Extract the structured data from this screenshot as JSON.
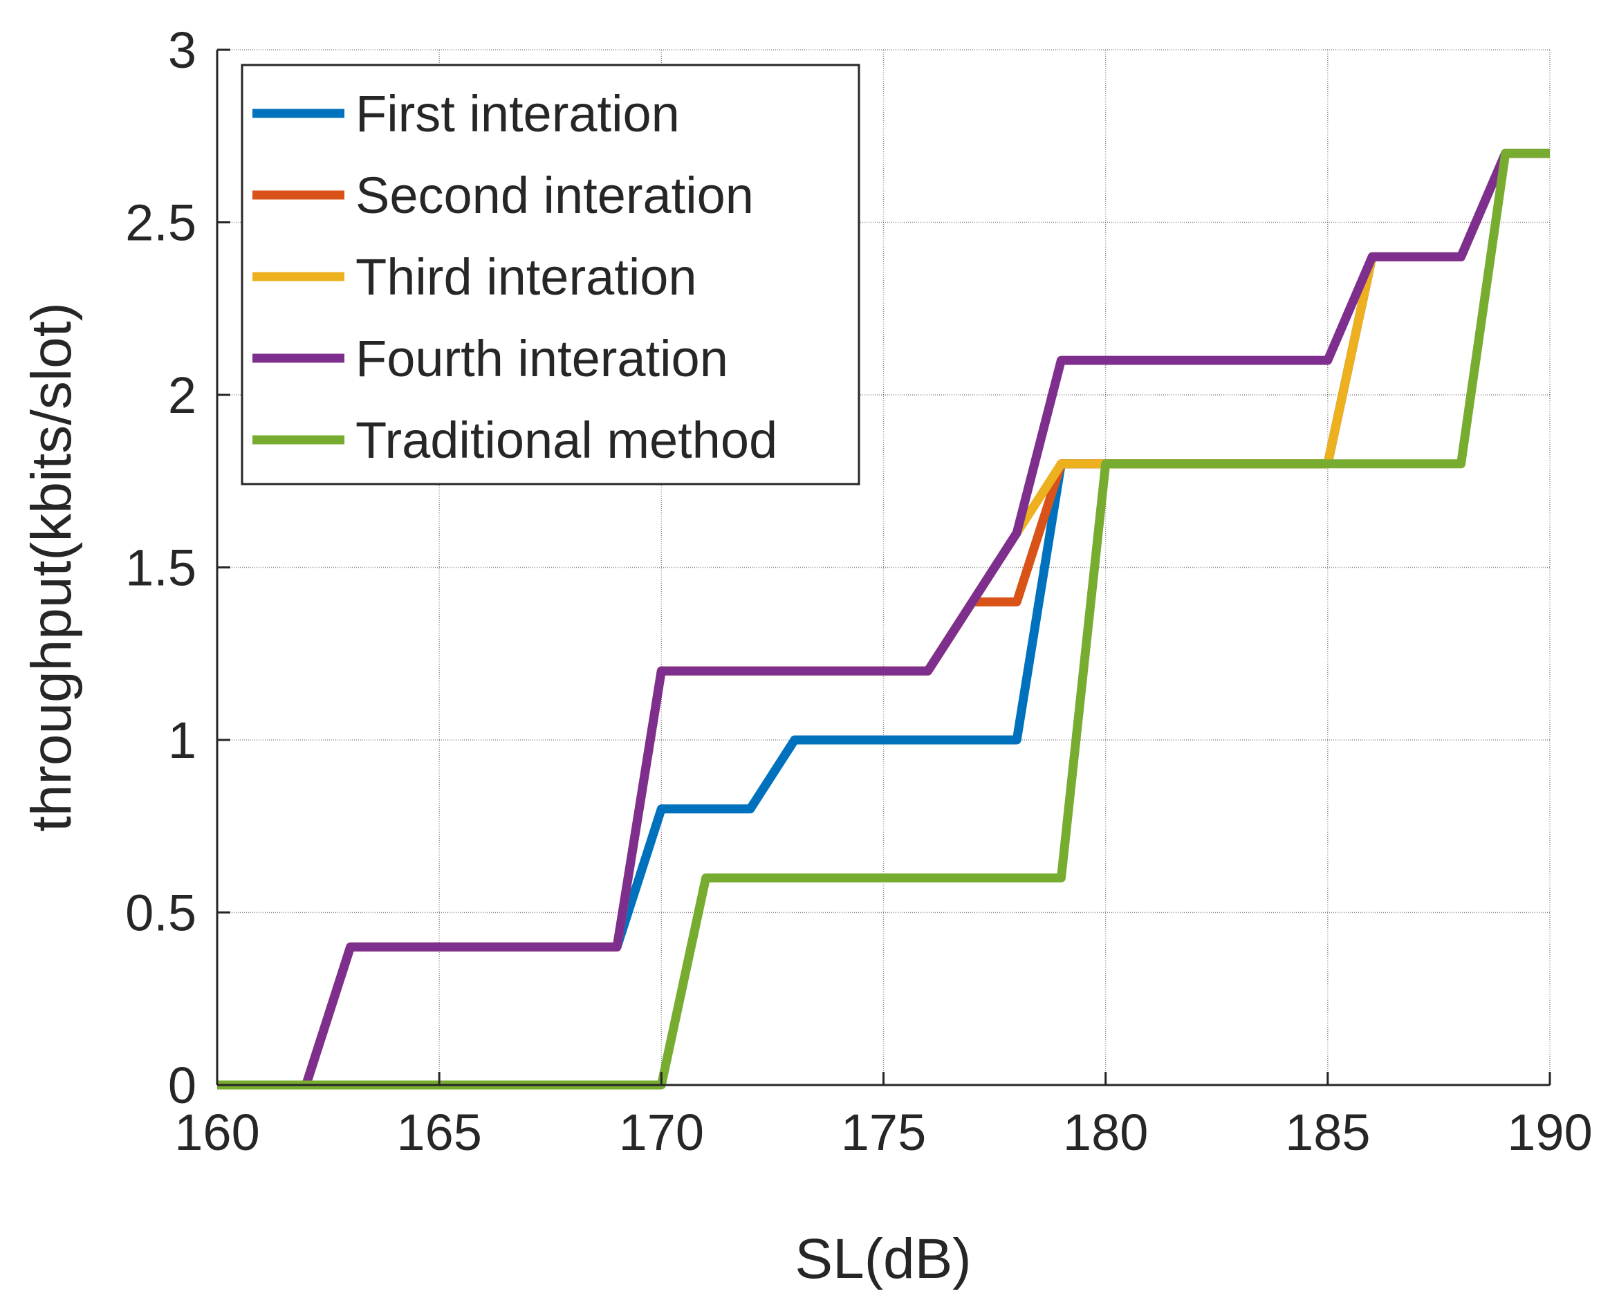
{
  "chart_data": {
    "type": "line",
    "title": "",
    "xlabel": "SL(dB)",
    "ylabel": "throughput(kbits/slot)",
    "xlim": [
      160,
      190
    ],
    "ylim": [
      0,
      3
    ],
    "grid": true,
    "xticks": [
      160,
      165,
      170,
      175,
      180,
      185,
      190
    ],
    "yticks": [
      0,
      0.5,
      1,
      1.5,
      2,
      2.5,
      3
    ],
    "xtick_labels": [
      "160",
      "165",
      "170",
      "175",
      "180",
      "185",
      "190"
    ],
    "ytick_labels": [
      "0",
      "0.5",
      "1",
      "1.5",
      "2",
      "2.5",
      "3"
    ],
    "legend_position": "top-left",
    "series": [
      {
        "name": "First interation",
        "color": "#0072BD",
        "x": [
          160,
          162,
          163,
          164,
          165,
          166,
          167,
          168,
          169,
          170,
          171,
          172,
          173,
          174,
          175,
          176,
          177,
          178,
          179,
          180,
          181,
          182,
          183,
          184,
          185,
          186,
          187,
          188,
          189,
          190
        ],
        "y": [
          0,
          0,
          0.4,
          0.4,
          0.4,
          0.4,
          0.4,
          0.4,
          0.4,
          0.8,
          0.8,
          0.8,
          1.0,
          1.0,
          1.0,
          1.0,
          1.0,
          1.0,
          1.8,
          1.8,
          1.8,
          1.8,
          1.8,
          1.8,
          1.8,
          2.4,
          2.4,
          2.4,
          2.7,
          2.7
        ]
      },
      {
        "name": "Second interation",
        "color": "#D95319",
        "x": [
          160,
          162,
          163,
          164,
          165,
          166,
          167,
          168,
          169,
          170,
          171,
          172,
          173,
          174,
          175,
          176,
          177,
          178,
          179,
          180,
          181,
          182,
          183,
          184,
          185,
          186,
          187,
          188,
          189,
          190
        ],
        "y": [
          0,
          0,
          0.4,
          0.4,
          0.4,
          0.4,
          0.4,
          0.4,
          0.4,
          1.2,
          1.2,
          1.2,
          1.2,
          1.2,
          1.2,
          1.2,
          1.4,
          1.4,
          1.8,
          1.8,
          1.8,
          1.8,
          1.8,
          1.8,
          1.8,
          2.4,
          2.4,
          2.4,
          2.7,
          2.7
        ]
      },
      {
        "name": "Third interation",
        "color": "#EDB120",
        "x": [
          160,
          162,
          163,
          164,
          165,
          166,
          167,
          168,
          169,
          170,
          171,
          172,
          173,
          174,
          175,
          176,
          177,
          178,
          179,
          180,
          181,
          182,
          183,
          184,
          185,
          186,
          187,
          188,
          189,
          190
        ],
        "y": [
          0,
          0,
          0.4,
          0.4,
          0.4,
          0.4,
          0.4,
          0.4,
          0.4,
          1.2,
          1.2,
          1.2,
          1.2,
          1.2,
          1.2,
          1.2,
          1.4,
          1.6,
          1.8,
          1.8,
          1.8,
          1.8,
          1.8,
          1.8,
          1.8,
          2.4,
          2.4,
          2.4,
          2.7,
          2.7
        ]
      },
      {
        "name": "Fourth interation",
        "color": "#7E2F8E",
        "x": [
          160,
          162,
          163,
          164,
          165,
          166,
          167,
          168,
          169,
          170,
          171,
          172,
          173,
          174,
          175,
          176,
          177,
          178,
          179,
          180,
          181,
          182,
          183,
          184,
          185,
          186,
          187,
          188,
          189,
          190
        ],
        "y": [
          0,
          0,
          0.4,
          0.4,
          0.4,
          0.4,
          0.4,
          0.4,
          0.4,
          1.2,
          1.2,
          1.2,
          1.2,
          1.2,
          1.2,
          1.2,
          1.4,
          1.6,
          2.1,
          2.1,
          2.1,
          2.1,
          2.1,
          2.1,
          2.1,
          2.4,
          2.4,
          2.4,
          2.7,
          2.7
        ]
      },
      {
        "name": "Traditional method",
        "color": "#77AC30",
        "x": [
          160,
          161,
          162,
          163,
          164,
          165,
          166,
          167,
          168,
          169,
          170,
          171,
          172,
          173,
          174,
          175,
          176,
          177,
          178,
          179,
          180,
          181,
          182,
          183,
          184,
          185,
          186,
          187,
          188,
          189,
          190
        ],
        "y": [
          0,
          0,
          0,
          0,
          0,
          0,
          0,
          0,
          0,
          0,
          0,
          0.6,
          0.6,
          0.6,
          0.6,
          0.6,
          0.6,
          0.6,
          0.6,
          0.6,
          1.8,
          1.8,
          1.8,
          1.8,
          1.8,
          1.8,
          1.8,
          1.8,
          1.8,
          2.7,
          2.7
        ]
      }
    ]
  }
}
